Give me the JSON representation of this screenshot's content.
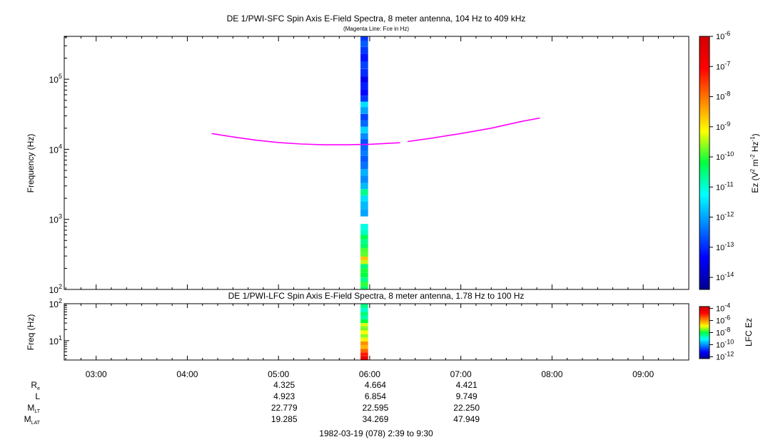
{
  "chart_data": [
    {
      "type": "heatmap",
      "title": "DE 1/PWI-SFC  Spin Axis E-Field Spectra, 8 meter antenna, 104 Hz to 409 kHz",
      "subtitle": "(Magenta Line: Fce in Hz)",
      "ylabel": "Frequency (Hz)",
      "yscale": "log",
      "ylim": [
        100,
        409000
      ],
      "yticks": [
        {
          "value": 100,
          "label": "10",
          "exp": "2"
        },
        {
          "value": 1000,
          "label": "10",
          "exp": "3"
        },
        {
          "value": 10000,
          "label": "10",
          "exp": "4"
        },
        {
          "value": 100000,
          "label": "10",
          "exp": "5"
        }
      ],
      "colorbar": {
        "label": "Ez (V",
        "label_sup1": "2",
        "label_mid": " m",
        "label_sup2": "-2",
        "label_mid2": " Hz",
        "label_sup3": "-1",
        "label_end": ")",
        "log_min": -14.4,
        "log_max": -6,
        "ticks": [
          {
            "value": -6,
            "label": "10",
            "exp": "-6"
          },
          {
            "value": -7,
            "label": "10",
            "exp": "-7"
          },
          {
            "value": -8,
            "label": "10",
            "exp": "-8"
          },
          {
            "value": -9,
            "label": "10",
            "exp": "-9"
          },
          {
            "value": -10,
            "label": "10",
            "exp": "-10"
          },
          {
            "value": -11,
            "label": "10",
            "exp": "-11"
          },
          {
            "value": -12,
            "label": "10",
            "exp": "-12"
          },
          {
            "value": -13,
            "label": "10",
            "exp": "-13"
          },
          {
            "value": -14,
            "label": "10",
            "exp": "-14"
          }
        ]
      },
      "data_column": {
        "time_start": "05:54",
        "time_end": "05:59"
      },
      "cells": [
        {
          "f0": 100,
          "f1": 112,
          "v": -10.4
        },
        {
          "f0": 112,
          "f1": 128,
          "v": -10.0
        },
        {
          "f0": 128,
          "f1": 148,
          "v": -10.6
        },
        {
          "f0": 148,
          "f1": 172,
          "v": -10.2
        },
        {
          "f0": 172,
          "f1": 200,
          "v": -10.1
        },
        {
          "f0": 200,
          "f1": 230,
          "v": -10.5
        },
        {
          "f0": 230,
          "f1": 260,
          "v": -9.4
        },
        {
          "f0": 260,
          "f1": 295,
          "v": -8.7
        },
        {
          "f0": 295,
          "f1": 340,
          "v": -9.8
        },
        {
          "f0": 340,
          "f1": 390,
          "v": -9.9
        },
        {
          "f0": 390,
          "f1": 450,
          "v": -10.4
        },
        {
          "f0": 450,
          "f1": 520,
          "v": -10.6
        },
        {
          "f0": 520,
          "f1": 600,
          "v": -10.3
        },
        {
          "f0": 600,
          "f1": 700,
          "v": -10.9
        },
        {
          "f0": 700,
          "f1": 860,
          "v": -11.1
        },
        {
          "f0": 1100,
          "f1": 1400,
          "v": -12.0
        },
        {
          "f0": 1400,
          "f1": 1800,
          "v": -11.8
        },
        {
          "f0": 1800,
          "f1": 2200,
          "v": -11.5
        },
        {
          "f0": 2200,
          "f1": 2700,
          "v": -10.6
        },
        {
          "f0": 2700,
          "f1": 3300,
          "v": -11.8
        },
        {
          "f0": 3300,
          "f1": 4200,
          "v": -12.2
        },
        {
          "f0": 4200,
          "f1": 5200,
          "v": -11.9
        },
        {
          "f0": 5200,
          "f1": 6500,
          "v": -12.4
        },
        {
          "f0": 6500,
          "f1": 8000,
          "v": -12.6
        },
        {
          "f0": 8000,
          "f1": 9500,
          "v": -12.3
        },
        {
          "f0": 9500,
          "f1": 11500,
          "v": -12.5
        },
        {
          "f0": 11500,
          "f1": 14000,
          "v": -12.7
        },
        {
          "f0": 14000,
          "f1": 17000,
          "v": -12.2
        },
        {
          "f0": 17000,
          "f1": 21000,
          "v": -11.6
        },
        {
          "f0": 21000,
          "f1": 26000,
          "v": -12.5
        },
        {
          "f0": 26000,
          "f1": 32000,
          "v": -12.8
        },
        {
          "f0": 32000,
          "f1": 40000,
          "v": -12.0
        },
        {
          "f0": 40000,
          "f1": 48000,
          "v": -11.5
        },
        {
          "f0": 48000,
          "f1": 58000,
          "v": -12.9
        },
        {
          "f0": 58000,
          "f1": 72000,
          "v": -13.3
        },
        {
          "f0": 72000,
          "f1": 90000,
          "v": -13.1
        },
        {
          "f0": 90000,
          "f1": 110000,
          "v": -13.5
        },
        {
          "f0": 110000,
          "f1": 140000,
          "v": -13.0
        },
        {
          "f0": 140000,
          "f1": 180000,
          "v": -12.8
        },
        {
          "f0": 180000,
          "f1": 230000,
          "v": -13.2
        },
        {
          "f0": 230000,
          "f1": 290000,
          "v": -12.9
        },
        {
          "f0": 290000,
          "f1": 350000,
          "v": -12.6
        },
        {
          "f0": 350000,
          "f1": 409000,
          "v": -12.9
        }
      ],
      "series": [
        {
          "name": "Fce in Hz",
          "color": "#ff00ff",
          "segments": [
            [
              [
                "04:16",
                16800
              ],
              [
                "04:30",
                15000
              ],
              [
                "04:45",
                13500
              ],
              [
                "05:00",
                12500
              ],
              [
                "05:15",
                11900
              ],
              [
                "05:30",
                11600
              ],
              [
                "05:45",
                11600
              ],
              [
                "06:00",
                11800
              ],
              [
                "06:20",
                12400
              ]
            ],
            [
              [
                "06:25",
                12900
              ],
              [
                "06:40",
                14300
              ],
              [
                "07:00",
                16800
              ],
              [
                "07:20",
                20000
              ],
              [
                "07:40",
                25000
              ],
              [
                "07:52",
                28000
              ]
            ]
          ]
        }
      ]
    },
    {
      "type": "heatmap",
      "title": "DE 1/PWI-LFC  Spin Axis E-Field Spectra, 8 meter antenna, 1.78 Hz to 100 Hz",
      "ylabel": "Freq (Hz)",
      "yscale": "log",
      "ylim": [
        3,
        100
      ],
      "yticks": [
        {
          "value": 10,
          "label": "10",
          "exp": "1"
        },
        {
          "value": 100,
          "label": "10",
          "exp": "2"
        }
      ],
      "colorbar": {
        "label": "LFC Ez",
        "log_min": -12.3,
        "log_max": -3.7,
        "ticks": [
          {
            "value": -4,
            "label": "10",
            "exp": "-4"
          },
          {
            "value": -6,
            "label": "10",
            "exp": "-6"
          },
          {
            "value": -8,
            "label": "10",
            "exp": "-8"
          },
          {
            "value": -10,
            "label": "10",
            "exp": "-10"
          },
          {
            "value": -12,
            "label": "10",
            "exp": "-12"
          }
        ]
      },
      "data_column": {
        "time_start": "05:54",
        "time_end": "05:59"
      },
      "cells": [
        {
          "f0": 3,
          "f1": 3.8,
          "v": -4.2
        },
        {
          "f0": 3.8,
          "f1": 4.8,
          "v": -5.0
        },
        {
          "f0": 4.8,
          "f1": 6.0,
          "v": -5.6
        },
        {
          "f0": 6.0,
          "f1": 7.6,
          "v": -6.3
        },
        {
          "f0": 7.6,
          "f1": 9.6,
          "v": -6.0
        },
        {
          "f0": 9.6,
          "f1": 12,
          "v": -6.8
        },
        {
          "f0": 12,
          "f1": 15,
          "v": -7.4
        },
        {
          "f0": 15,
          "f1": 19,
          "v": -6.9
        },
        {
          "f0": 19,
          "f1": 24,
          "v": -7.5
        },
        {
          "f0": 24,
          "f1": 30,
          "v": -7.1
        },
        {
          "f0": 30,
          "f1": 38,
          "v": -8.0
        },
        {
          "f0": 38,
          "f1": 48,
          "v": -8.6
        },
        {
          "f0": 48,
          "f1": 60,
          "v": -8.3
        },
        {
          "f0": 60,
          "f1": 76,
          "v": -8.8
        },
        {
          "f0": 76,
          "f1": 100,
          "v": -8.4
        }
      ]
    }
  ],
  "time_axis": {
    "start": "02:39",
    "end": "09:30",
    "ticks": [
      "03:00",
      "04:00",
      "05:00",
      "06:00",
      "07:00",
      "08:00",
      "09:00"
    ]
  },
  "ephemeris": [
    {
      "label": "R",
      "sub": "e",
      "values": [
        "4.325",
        "4.664",
        "4.421"
      ]
    },
    {
      "label": "L",
      "sub": "",
      "values": [
        "4.923",
        "6.854",
        "9.749"
      ]
    },
    {
      "label": "M",
      "sub": "LT",
      "values": [
        "22.779",
        "22.595",
        "22.250"
      ]
    },
    {
      "label": "M",
      "sub": "LAT",
      "values": [
        "19.285",
        "34.269",
        "47.949"
      ]
    }
  ],
  "ephemeris_times": [
    "05:00",
    "06:00",
    "07:00"
  ],
  "footer": "1982-03-19 (078) 2:39 to 9:30"
}
